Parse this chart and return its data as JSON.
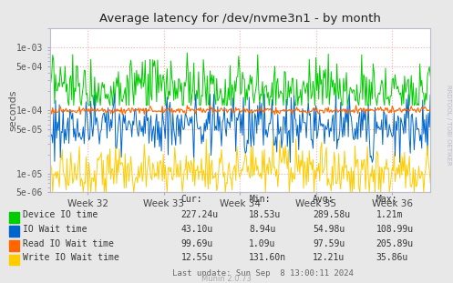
{
  "title": "Average latency for /dev/nvme3n1 - by month",
  "ylabel": "seconds",
  "xlabel_ticks": [
    "Week 32",
    "Week 33",
    "Week 34",
    "Week 35",
    "Week 36"
  ],
  "yticks": [
    0.001,
    0.0005,
    0.0001,
    5e-05,
    1e-05,
    5e-06
  ],
  "ytick_labels": [
    "1e-03",
    "5e-04",
    "1e-04",
    "5e-05",
    "1e-05",
    "5e-06"
  ],
  "bg_color": "#e8e8e8",
  "plot_bg_color": "#ffffff",
  "grid_color": "#ffaaaa",
  "colors": [
    "#00cc00",
    "#0066cc",
    "#ff6600",
    "#ffcc00"
  ],
  "legend_table": {
    "headers": [
      "Cur:",
      "Min:",
      "Avg:",
      "Max:"
    ],
    "rows": [
      [
        "Device IO time",
        "227.24u",
        "18.53u",
        "289.58u",
        "1.21m"
      ],
      [
        "IO Wait time",
        "43.10u",
        "8.94u",
        "54.98u",
        "108.99u"
      ],
      [
        "Read IO Wait time",
        "99.69u",
        "1.09u",
        "97.59u",
        "205.89u"
      ],
      [
        "Write IO Wait time",
        "12.55u",
        "131.60n",
        "12.21u",
        "35.86u"
      ]
    ],
    "footer": "Last update: Sun Sep  8 13:00:11 2024"
  },
  "right_label": "RRDTOOL / TOBI OETIKER",
  "munin_label": "Munin 2.0.73",
  "n_points": 400
}
